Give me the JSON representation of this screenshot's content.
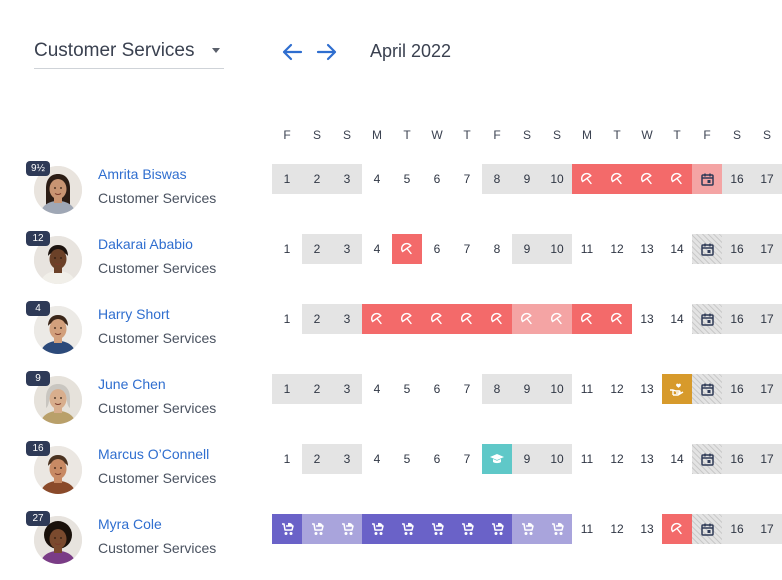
{
  "department_select": {
    "value": "Customer Services"
  },
  "month_label": "April 2022",
  "weekdays": [
    "F",
    "S",
    "S",
    "M",
    "T",
    "W",
    "T",
    "F",
    "S",
    "S",
    "M",
    "T",
    "W",
    "T",
    "F",
    "S",
    "S"
  ],
  "colors": {
    "weekend": "#e4e4e4",
    "leave": "#f36a6a",
    "leave_pending": "#f4a4a4",
    "training": "#5fc8c8",
    "care": "#d79a2b",
    "parental": "#6a62c8",
    "parental_light": "#a9a4dc",
    "link": "#2f6ecf"
  },
  "people": [
    {
      "name": "Amrita Biswas",
      "department": "Customer Services",
      "badge": "9½",
      "days": [
        {
          "t": "weekend",
          "label": "1"
        },
        {
          "t": "weekend",
          "label": "2"
        },
        {
          "t": "weekend",
          "label": "3"
        },
        {
          "t": "day",
          "label": "4"
        },
        {
          "t": "day",
          "label": "5"
        },
        {
          "t": "day",
          "label": "6"
        },
        {
          "t": "day",
          "label": "7"
        },
        {
          "t": "weekend",
          "label": "8"
        },
        {
          "t": "weekend",
          "label": "9"
        },
        {
          "t": "weekend",
          "label": "10"
        },
        {
          "t": "leave",
          "icon": "umbrella-icon"
        },
        {
          "t": "leave",
          "icon": "umbrella-icon"
        },
        {
          "t": "leave",
          "icon": "umbrella-icon"
        },
        {
          "t": "leave",
          "icon": "umbrella-icon"
        },
        {
          "t": "holiday-pink",
          "icon": "calendar-icon"
        },
        {
          "t": "weekend",
          "label": "16"
        },
        {
          "t": "weekend",
          "label": "17"
        }
      ]
    },
    {
      "name": "Dakarai Ababio",
      "department": "Customer Services",
      "badge": "12",
      "days": [
        {
          "t": "day",
          "label": "1"
        },
        {
          "t": "weekend",
          "label": "2"
        },
        {
          "t": "weekend",
          "label": "3"
        },
        {
          "t": "day",
          "label": "4"
        },
        {
          "t": "leave",
          "icon": "umbrella-icon"
        },
        {
          "t": "day",
          "label": "6"
        },
        {
          "t": "day",
          "label": "7"
        },
        {
          "t": "day",
          "label": "8"
        },
        {
          "t": "weekend",
          "label": "9"
        },
        {
          "t": "weekend",
          "label": "10"
        },
        {
          "t": "day",
          "label": "11"
        },
        {
          "t": "day",
          "label": "12"
        },
        {
          "t": "day",
          "label": "13"
        },
        {
          "t": "day",
          "label": "14"
        },
        {
          "t": "holiday",
          "icon": "calendar-icon"
        },
        {
          "t": "weekend",
          "label": "16"
        },
        {
          "t": "weekend",
          "label": "17"
        }
      ]
    },
    {
      "name": "Harry Short",
      "department": "Customer Services",
      "badge": "4",
      "days": [
        {
          "t": "day",
          "label": "1"
        },
        {
          "t": "weekend",
          "label": "2"
        },
        {
          "t": "weekend",
          "label": "3"
        },
        {
          "t": "leave",
          "icon": "umbrella-icon"
        },
        {
          "t": "leave",
          "icon": "umbrella-icon"
        },
        {
          "t": "leave",
          "icon": "umbrella-icon"
        },
        {
          "t": "leave",
          "icon": "umbrella-icon"
        },
        {
          "t": "leave",
          "icon": "umbrella-icon"
        },
        {
          "t": "leave-pending",
          "icon": "umbrella-icon"
        },
        {
          "t": "leave-pending",
          "icon": "umbrella-icon"
        },
        {
          "t": "leave",
          "icon": "umbrella-icon"
        },
        {
          "t": "leave",
          "icon": "umbrella-icon"
        },
        {
          "t": "day",
          "label": "13"
        },
        {
          "t": "day",
          "label": "14"
        },
        {
          "t": "holiday",
          "icon": "calendar-icon"
        },
        {
          "t": "weekend",
          "label": "16"
        },
        {
          "t": "weekend",
          "label": "17"
        }
      ]
    },
    {
      "name": "June Chen",
      "department": "Customer Services",
      "badge": "9",
      "days": [
        {
          "t": "weekend",
          "label": "1"
        },
        {
          "t": "weekend",
          "label": "2"
        },
        {
          "t": "weekend",
          "label": "3"
        },
        {
          "t": "day",
          "label": "4"
        },
        {
          "t": "day",
          "label": "5"
        },
        {
          "t": "day",
          "label": "6"
        },
        {
          "t": "day",
          "label": "7"
        },
        {
          "t": "weekend",
          "label": "8"
        },
        {
          "t": "weekend",
          "label": "9"
        },
        {
          "t": "weekend",
          "label": "10"
        },
        {
          "t": "day",
          "label": "11"
        },
        {
          "t": "day",
          "label": "12"
        },
        {
          "t": "day",
          "label": "13"
        },
        {
          "t": "care",
          "icon": "care-hand-icon"
        },
        {
          "t": "holiday",
          "icon": "calendar-icon"
        },
        {
          "t": "weekend",
          "label": "16"
        },
        {
          "t": "weekend",
          "label": "17"
        }
      ]
    },
    {
      "name": "Marcus O’Connell",
      "department": "Customer Services",
      "badge": "16",
      "days": [
        {
          "t": "day",
          "label": "1"
        },
        {
          "t": "weekend",
          "label": "2"
        },
        {
          "t": "weekend",
          "label": "3"
        },
        {
          "t": "day",
          "label": "4"
        },
        {
          "t": "day",
          "label": "5"
        },
        {
          "t": "day",
          "label": "6"
        },
        {
          "t": "day",
          "label": "7"
        },
        {
          "t": "training",
          "icon": "graduation-cap-icon"
        },
        {
          "t": "weekend",
          "label": "9"
        },
        {
          "t": "weekend",
          "label": "10"
        },
        {
          "t": "day",
          "label": "11"
        },
        {
          "t": "day",
          "label": "12"
        },
        {
          "t": "day",
          "label": "13"
        },
        {
          "t": "day",
          "label": "14"
        },
        {
          "t": "holiday",
          "icon": "calendar-icon"
        },
        {
          "t": "weekend",
          "label": "16"
        },
        {
          "t": "weekend",
          "label": "17"
        }
      ]
    },
    {
      "name": "Myra Cole",
      "department": "Customer Services",
      "badge": "27",
      "days": [
        {
          "t": "parental",
          "icon": "stroller-icon"
        },
        {
          "t": "parental-light",
          "icon": "stroller-icon"
        },
        {
          "t": "parental-light",
          "icon": "stroller-icon"
        },
        {
          "t": "parental",
          "icon": "stroller-icon"
        },
        {
          "t": "parental",
          "icon": "stroller-icon"
        },
        {
          "t": "parental",
          "icon": "stroller-icon"
        },
        {
          "t": "parental",
          "icon": "stroller-icon"
        },
        {
          "t": "parental",
          "icon": "stroller-icon"
        },
        {
          "t": "parental-light",
          "icon": "stroller-icon"
        },
        {
          "t": "parental-light",
          "icon": "stroller-icon"
        },
        {
          "t": "day",
          "label": "11"
        },
        {
          "t": "day",
          "label": "12"
        },
        {
          "t": "day",
          "label": "13"
        },
        {
          "t": "leave",
          "icon": "umbrella-icon"
        },
        {
          "t": "holiday",
          "icon": "calendar-icon"
        },
        {
          "t": "weekend",
          "label": "16"
        },
        {
          "t": "weekend",
          "label": "17"
        }
      ]
    }
  ]
}
